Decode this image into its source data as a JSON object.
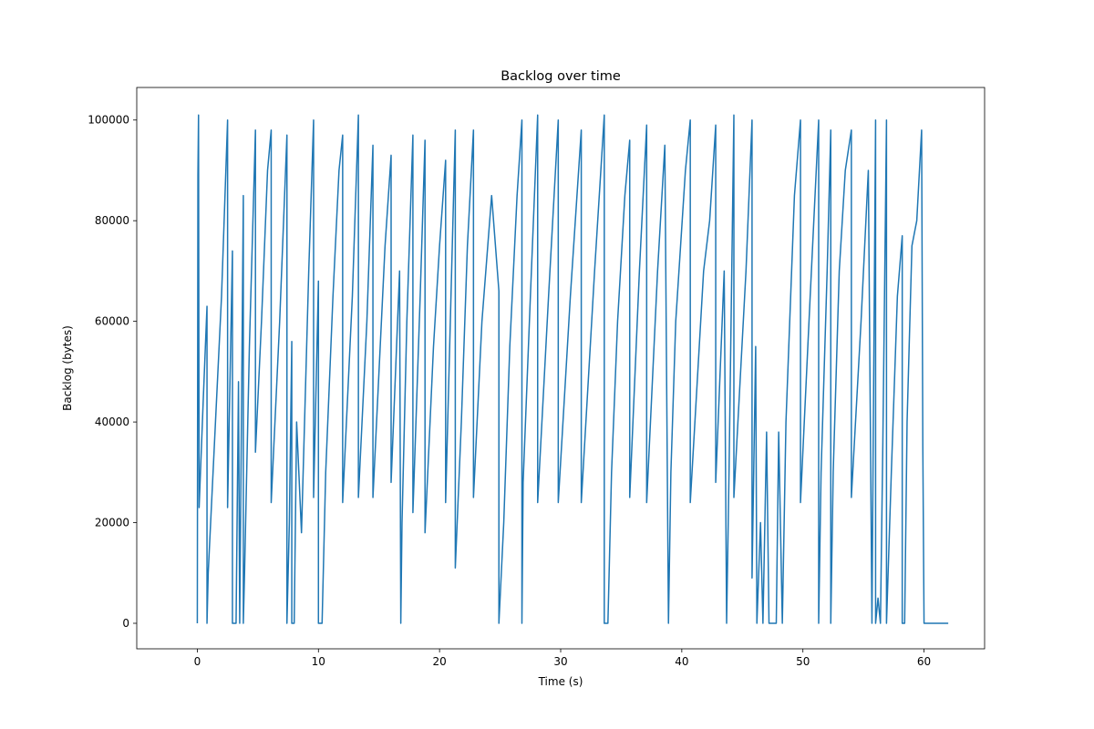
{
  "chart_data": {
    "type": "line",
    "title": "Backlog over time",
    "x_label": "Time (s)",
    "y_label": "Backlog (bytes)",
    "xlim": [
      -5,
      65
    ],
    "ylim": [
      -5070,
      106470
    ],
    "xticks": [
      0,
      10,
      20,
      30,
      40,
      50,
      60
    ],
    "yticks": [
      0,
      20000,
      40000,
      60000,
      80000,
      100000
    ],
    "grid": false,
    "x": [
      0,
      0.05,
      0.1,
      0.15,
      0.5,
      0.8,
      0.8,
      0.9,
      1.5,
      2.0,
      2.5,
      2.5,
      2.9,
      2.9,
      3.2,
      3.4,
      3.5,
      3.8,
      3.8,
      3.9,
      4.3,
      4.8,
      4.8,
      5.3,
      5.8,
      6.1,
      6.1,
      6.8,
      7.4,
      7.4,
      7.6,
      7.8,
      7.8,
      8.0,
      8.2,
      8.6,
      9.2,
      9.6,
      9.6,
      10.0,
      10.0,
      10.3,
      10.6,
      11.2,
      11.7,
      12.0,
      12.0,
      12.8,
      13.3,
      13.3,
      14.0,
      14.5,
      14.5,
      15.5,
      16.0,
      16.0,
      16.7,
      16.8,
      16.9,
      17.3,
      17.8,
      17.8,
      18.4,
      18.8,
      18.8,
      19.5,
      20.0,
      20.5,
      20.5,
      21.3,
      21.3,
      21.8,
      22.3,
      22.8,
      22.8,
      23.5,
      24.3,
      24.9,
      24.9,
      25.3,
      25.8,
      26.4,
      26.8,
      26.8,
      26.9,
      27.5,
      28.1,
      28.1,
      29.0,
      29.8,
      29.8,
      30.8,
      31.7,
      31.7,
      32.8,
      33.6,
      33.6,
      33.9,
      34.2,
      34.7,
      35.3,
      35.7,
      35.7,
      36.5,
      37.1,
      37.1,
      38.0,
      38.6,
      38.9,
      39.1,
      39.5,
      40.3,
      40.7,
      40.7,
      41.8,
      42.3,
      42.8,
      42.8,
      43.5,
      43.7,
      43.9,
      44.3,
      44.3,
      45.3,
      45.8,
      45.8,
      46.1,
      46.2,
      46.5,
      46.7,
      47.0,
      47.2,
      47.8,
      48.0,
      48.3,
      48.6,
      49.3,
      49.8,
      49.8,
      50.6,
      51.3,
      51.3,
      51.5,
      52.0,
      52.3,
      52.3,
      52.5,
      53.0,
      53.5,
      54.0,
      54.0,
      54.8,
      55.4,
      55.7,
      55.8,
      56.0,
      56.0,
      56.2,
      56.4,
      56.6,
      56.9,
      56.9,
      57.3,
      57.8,
      58.2,
      58.2,
      58.4,
      58.6,
      59.0,
      59.4,
      59.8,
      59.9,
      60.0,
      62.0
    ],
    "series": [
      {
        "color": "#1f77b4",
        "values": [
          0,
          89000,
          101000,
          23000,
          45000,
          63000,
          0,
          10000,
          40000,
          65000,
          100000,
          23000,
          74000,
          0,
          0,
          48000,
          0,
          85000,
          0,
          10000,
          55000,
          98000,
          34000,
          60000,
          90000,
          98000,
          24000,
          60000,
          97000,
          0,
          20000,
          56000,
          0,
          0,
          40000,
          18000,
          70000,
          100000,
          25000,
          68000,
          0,
          0,
          30000,
          65000,
          90000,
          97000,
          24000,
          65000,
          101000,
          25000,
          60000,
          95000,
          25000,
          75000,
          93000,
          28000,
          70000,
          0,
          20000,
          60000,
          97000,
          22000,
          65000,
          96000,
          18000,
          55000,
          75000,
          92000,
          24000,
          98000,
          11000,
          40000,
          75000,
          98000,
          25000,
          60000,
          85000,
          66000,
          0,
          20000,
          55000,
          85000,
          100000,
          0,
          28000,
          65000,
          101000,
          24000,
          65000,
          100000,
          24000,
          65000,
          98000,
          24000,
          70000,
          101000,
          0,
          0,
          30000,
          60000,
          85000,
          96000,
          25000,
          70000,
          99000,
          24000,
          70000,
          95000,
          0,
          30000,
          60000,
          90000,
          100000,
          24000,
          70000,
          80000,
          99000,
          28000,
          70000,
          0,
          30000,
          101000,
          25000,
          70000,
          100000,
          9000,
          55000,
          0,
          20000,
          0,
          38000,
          0,
          0,
          38000,
          0,
          40000,
          85000,
          100000,
          24000,
          65000,
          100000,
          0,
          30000,
          70000,
          98000,
          0,
          30000,
          70000,
          90000,
          98000,
          25000,
          60000,
          90000,
          0,
          35000,
          100000,
          0,
          5000,
          0,
          36000,
          100000,
          0,
          30000,
          65000,
          77000,
          0,
          0,
          40000,
          75000,
          80000,
          98000,
          35000,
          0,
          0
        ]
      }
    ]
  }
}
